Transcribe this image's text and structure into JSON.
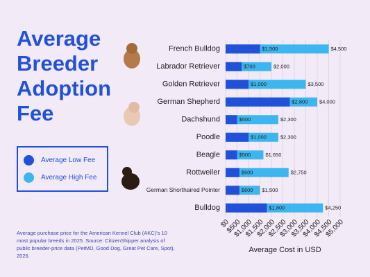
{
  "chart_data": {
    "type": "bar",
    "orientation": "horizontal",
    "title": "Average Breeder Adoption Fee",
    "categories": [
      "French Bulldog",
      "Labrador Retriever",
      "Golden Retriever",
      "German Shepherd",
      "Dachshund",
      "Poodle",
      "Beagle",
      "Rottweiler",
      "German Shorthaired Pointer",
      "Bulldog"
    ],
    "series": [
      {
        "name": "Average High Fee",
        "color": "#3cb6ef",
        "values": [
          4500,
          2000,
          3500,
          4000,
          2300,
          2300,
          1650,
          2750,
          1500,
          4250
        ],
        "value_labels": [
          "$4,500",
          "$2,000",
          "$3,500",
          "$4,000",
          "$2,300",
          "$2,300",
          "$1,650",
          "$2,750",
          "$1,500",
          "$4,250"
        ]
      },
      {
        "name": "Average Low Fee",
        "color": "#2151d8",
        "values": [
          1500,
          700,
          1000,
          2800,
          500,
          1000,
          500,
          600,
          600,
          1800
        ],
        "value_labels": [
          "$1,500",
          "$700",
          "$1,000",
          "$2,800",
          "$500",
          "$1,000",
          "$500",
          "$600",
          "$600",
          "$1,800"
        ]
      }
    ],
    "xlim": [
      0,
      5000
    ],
    "xticks": [
      {
        "value": 0,
        "label": "$0"
      },
      {
        "value": 500,
        "label": "$500"
      },
      {
        "value": 1000,
        "label": "$1,000"
      },
      {
        "value": 1500,
        "label": "$1,500"
      },
      {
        "value": 2000,
        "label": "$2,000"
      },
      {
        "value": 2500,
        "label": "$2,500"
      },
      {
        "value": 3000,
        "label": "$3,000"
      },
      {
        "value": 3500,
        "label": "$3,500"
      },
      {
        "value": 4000,
        "label": "$4,000"
      },
      {
        "value": 4500,
        "label": "$4,500"
      },
      {
        "value": 5000,
        "label": "$5,000"
      }
    ],
    "xlabel": "Average Cost in USD",
    "grid": true,
    "note": "Average purchase price for the American Kennel Club (AKC)'s 10 most popular breeds in 2025. Source: CitizenShipper analysis of public breeder-price data (PetMD, Good Dog, Great Pet Care, Spot), 2026."
  }
}
